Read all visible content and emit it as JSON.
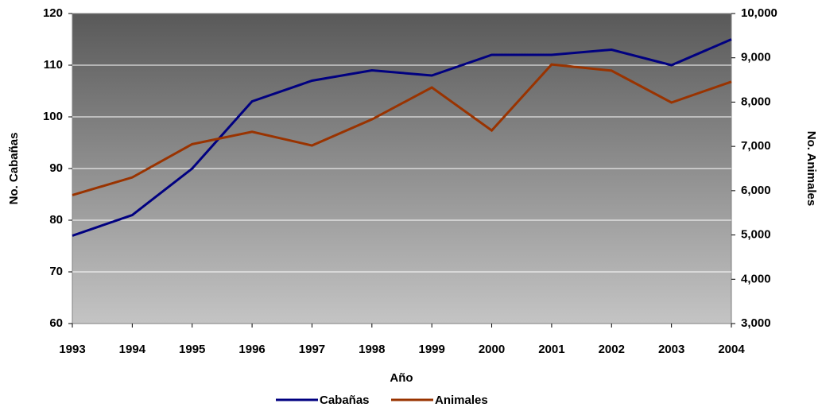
{
  "chart_data": {
    "type": "line",
    "x": [
      1993,
      1994,
      1995,
      1996,
      1997,
      1998,
      1999,
      2000,
      2001,
      2002,
      2003,
      2004
    ],
    "xlim": [
      1993,
      2004
    ],
    "xticks": [
      1993,
      1994,
      1995,
      1996,
      1997,
      1998,
      1999,
      2000,
      2001,
      2002,
      2003,
      2004
    ],
    "x_label": "Año",
    "y_label": "No. Cabañas",
    "y2_label": "No. Animales",
    "ylim": [
      60,
      120
    ],
    "yticks": [
      60,
      70,
      80,
      90,
      100,
      110,
      120
    ],
    "y2lim": [
      3000,
      10000
    ],
    "y2ticks": [
      {
        "value": 3000,
        "label": "3,000"
      },
      {
        "value": 4000,
        "label": "4,000"
      },
      {
        "value": 5000,
        "label": "5,000"
      },
      {
        "value": 6000,
        "label": "6,000"
      },
      {
        "value": 7000,
        "label": "7,000"
      },
      {
        "value": 8000,
        "label": "8,000"
      },
      {
        "value": 9000,
        "label": "9,000"
      },
      {
        "value": 10000,
        "label": "10,000"
      }
    ],
    "grid": true,
    "legend": "bottom",
    "series": [
      {
        "name": "Cabañas",
        "color": "#000080",
        "values": [
          77,
          81,
          90,
          103,
          107,
          109,
          108,
          112,
          112,
          113,
          110,
          115
        ]
      },
      {
        "name": "Animales",
        "color": "#993300",
        "axis": "y2",
        "values": [
          5900,
          6300,
          7050,
          7330,
          7020,
          7610,
          8330,
          7360,
          8850,
          8710,
          7990,
          8460
        ]
      }
    ]
  }
}
